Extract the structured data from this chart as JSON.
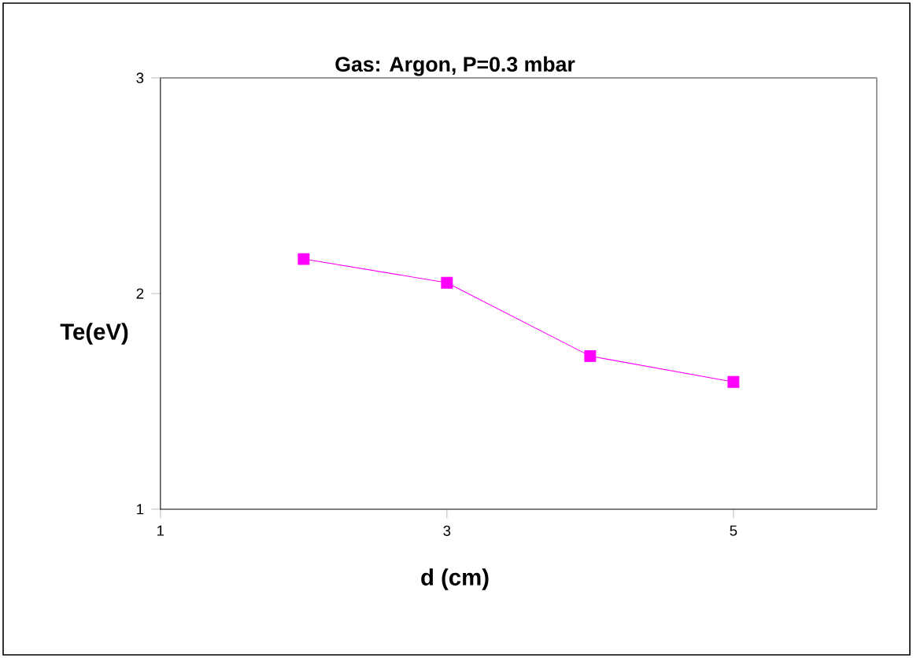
{
  "chart_data": {
    "type": "line",
    "title": "Gas: Argon, P=0.3 mbar",
    "xlabel": "d (cm)",
    "ylabel": "Te(eV)",
    "x": [
      2,
      3,
      4,
      5
    ],
    "series": [
      {
        "color": "#ff00ff",
        "values": [
          2.16,
          2.05,
          1.71,
          1.59
        ]
      }
    ],
    "xlim": [
      1,
      6
    ],
    "ylim": [
      1,
      3
    ],
    "xticks": [
      1,
      3,
      5
    ],
    "yticks": [
      1,
      2,
      3
    ],
    "marker": "square",
    "line_style": "solid",
    "grid": false
  }
}
